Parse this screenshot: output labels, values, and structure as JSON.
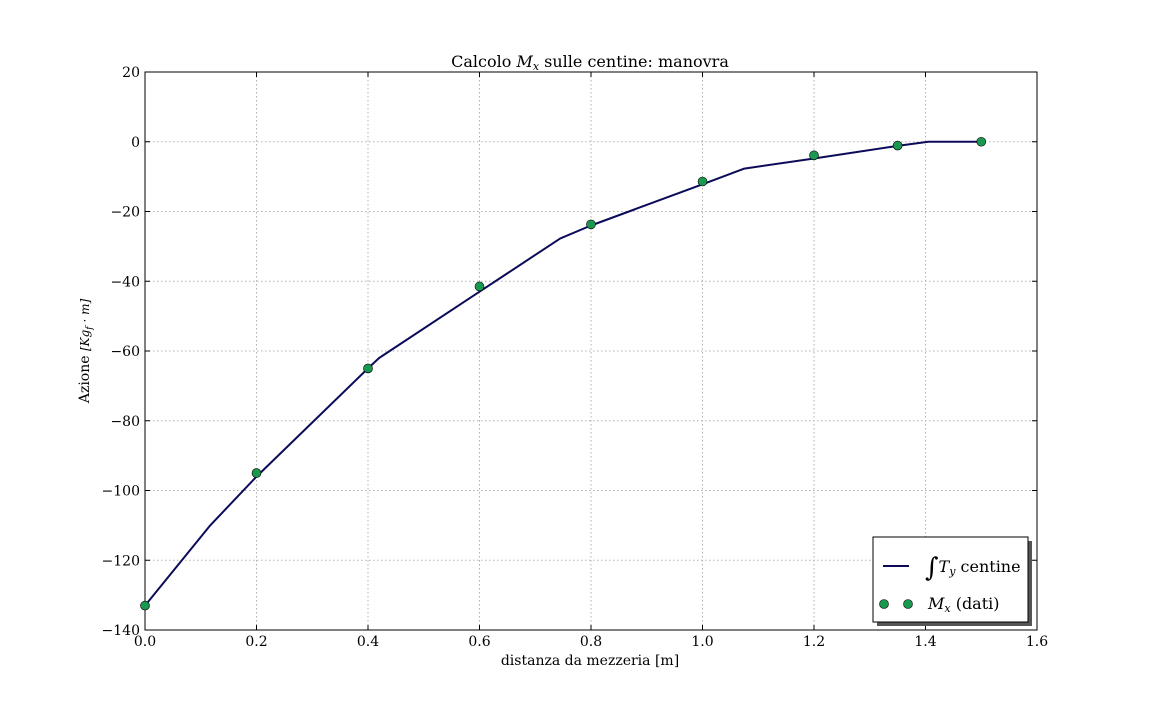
{
  "chart_data": {
    "type": "line",
    "title": {
      "prefix": "Calcolo ",
      "symbol": "M",
      "subscript": "x",
      "suffix": " sulle centine: manovra"
    },
    "xlabel": "distanza da mezzeria [m]",
    "ylabel": {
      "text": "Azione ",
      "unit": "[Kg",
      "unit_sub": "f",
      "unit_end": " · m]"
    },
    "xlim": [
      0.0,
      1.6
    ],
    "ylim": [
      -140,
      20
    ],
    "xticks": [
      0.0,
      0.2,
      0.4,
      0.6,
      0.8,
      1.0,
      1.2,
      1.4,
      1.6
    ],
    "xtick_labels": [
      "0.0",
      "0.2",
      "0.4",
      "0.6",
      "0.8",
      "1.0",
      "1.2",
      "1.4",
      "1.6"
    ],
    "yticks": [
      20,
      0,
      -20,
      -40,
      -60,
      -80,
      -100,
      -120,
      -140
    ],
    "ytick_labels": [
      "20",
      "0",
      "−20",
      "−40",
      "−60",
      "−80",
      "−100",
      "−120",
      "−140"
    ],
    "grid": true,
    "legend_position": "bottom-right",
    "series": [
      {
        "name": "∫T_y centine",
        "legend": {
          "integral": "∫",
          "symbol": "T",
          "subscript": "y",
          "suffix": " centine"
        },
        "kind": "line",
        "color": "#0b0b5a",
        "x": [
          0.0,
          0.117,
          0.2,
          0.4,
          0.42,
          0.6,
          0.745,
          0.8,
          1.0,
          1.075,
          1.2,
          1.35,
          1.405,
          1.5
        ],
        "y": [
          -133,
          -110,
          -96,
          -65,
          -62,
          -43,
          -27.7,
          -24,
          -12.2,
          -7.7,
          -4.8,
          -1.2,
          0,
          0
        ]
      },
      {
        "name": "M_x (dati)",
        "legend": {
          "symbol": "M",
          "subscript": "x",
          "suffix": " (dati)"
        },
        "kind": "scatter",
        "color": "#1a9850",
        "x": [
          0.0,
          0.2,
          0.4,
          0.6,
          0.8,
          1.0,
          1.2,
          1.35,
          1.5
        ],
        "y": [
          -133,
          -95,
          -65,
          -41.5,
          -23.7,
          -11.4,
          -3.9,
          -1.1,
          0
        ]
      }
    ]
  }
}
